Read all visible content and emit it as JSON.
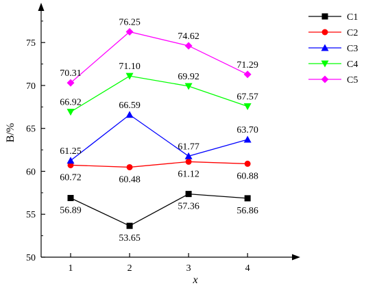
{
  "chart_data": {
    "type": "line",
    "xlabel": "x",
    "ylabel": "B/%",
    "x": [
      1,
      2,
      3,
      4
    ],
    "xlim": [
      0.5,
      4.8
    ],
    "ylim": [
      50,
      79
    ],
    "yticks": [
      50,
      55,
      60,
      65,
      70,
      75
    ],
    "grid": false,
    "legend": "top-right",
    "series": [
      {
        "name": "C1",
        "color": "#000000",
        "marker": "square",
        "values": [
          56.89,
          53.65,
          57.36,
          56.86
        ],
        "labels": [
          "56.89",
          "53.65",
          "57.36",
          "56.86"
        ],
        "label_pos": [
          "below",
          "below",
          "below",
          "below"
        ]
      },
      {
        "name": "C2",
        "color": "#ff0000",
        "marker": "circle",
        "values": [
          60.72,
          60.48,
          61.12,
          60.88
        ],
        "labels": [
          "60.72",
          "60.48",
          "61.12",
          "60.88"
        ],
        "label_pos": [
          "below",
          "below",
          "below",
          "below"
        ]
      },
      {
        "name": "C3",
        "color": "#0000ff",
        "marker": "triangle-up",
        "values": [
          61.25,
          66.59,
          61.77,
          63.7
        ],
        "labels": [
          "61.25",
          "66.59",
          "61.77",
          "63.70"
        ],
        "label_pos": [
          "above",
          "above",
          "above",
          "above"
        ]
      },
      {
        "name": "C4",
        "color": "#00ff00",
        "marker": "triangle-down",
        "values": [
          66.92,
          71.1,
          69.92,
          67.57
        ],
        "labels": [
          "66.92",
          "71.10",
          "69.92",
          "67.57"
        ],
        "label_pos": [
          "above",
          "above",
          "above",
          "above"
        ]
      },
      {
        "name": "C5",
        "color": "#ff00ff",
        "marker": "diamond",
        "values": [
          70.31,
          76.25,
          74.62,
          71.29
        ],
        "labels": [
          "70.31",
          "76.25",
          "74.62",
          "71.29"
        ],
        "label_pos": [
          "above",
          "above",
          "above",
          "above"
        ]
      }
    ]
  }
}
